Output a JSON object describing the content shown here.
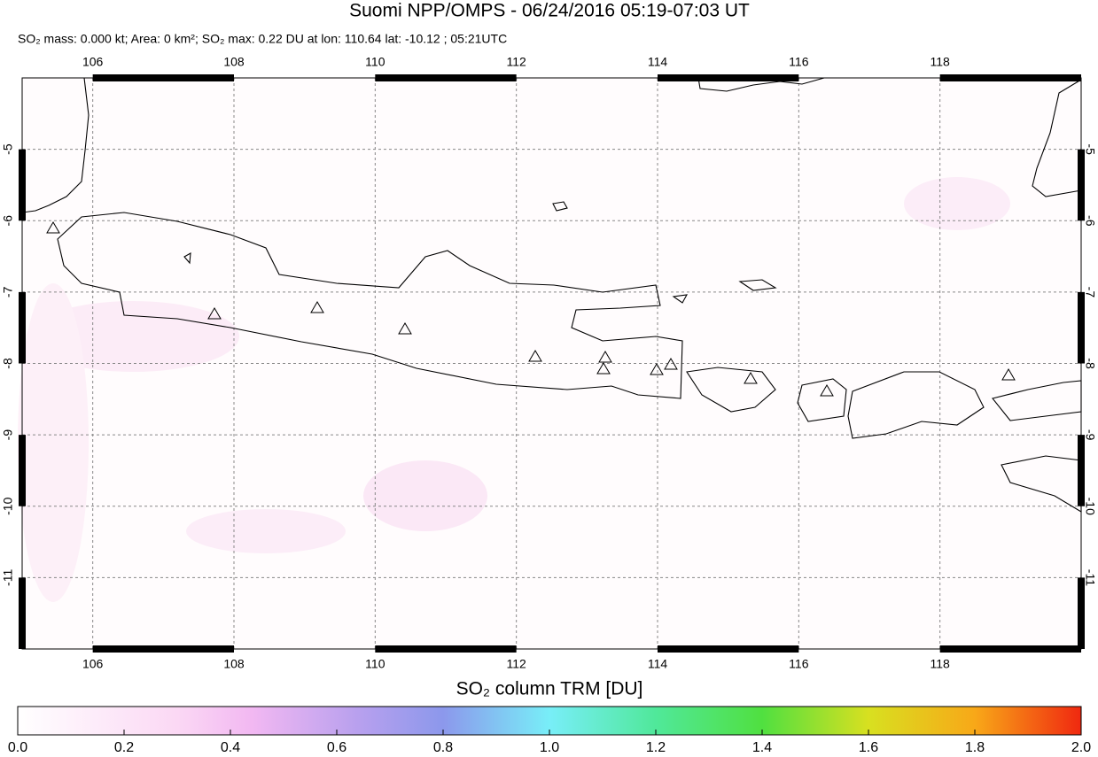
{
  "header": {
    "title": "Suomi NPP/OMPS - 06/24/2016 05:19-07:03 UT",
    "subtitle": "SO₂ mass: 0.000 kt; Area: 0 km²; SO₂ max: 0.22 DU at lon: 110.64 lat: -10.12 ; 05:21UTC"
  },
  "map": {
    "lonlim": [
      105,
      120
    ],
    "latlim": [
      -12,
      -4
    ],
    "lon_ticks": [
      106,
      108,
      110,
      112,
      114,
      116,
      118
    ],
    "lat_ticks": [
      -5,
      -6,
      -7,
      -8,
      -9,
      -10,
      -11
    ]
  },
  "colorbar": {
    "label": "SO₂ column TRM [DU]",
    "lim": [
      0,
      2
    ],
    "ticks": [
      {
        "value": 0,
        "label": "0.0"
      },
      0.2,
      0.4,
      0.6,
      0.8,
      {
        "value": 1,
        "label": "1.0"
      },
      1.2,
      1.4,
      1.6,
      1.8,
      {
        "value": 2,
        "label": "2.0"
      }
    ]
  }
}
